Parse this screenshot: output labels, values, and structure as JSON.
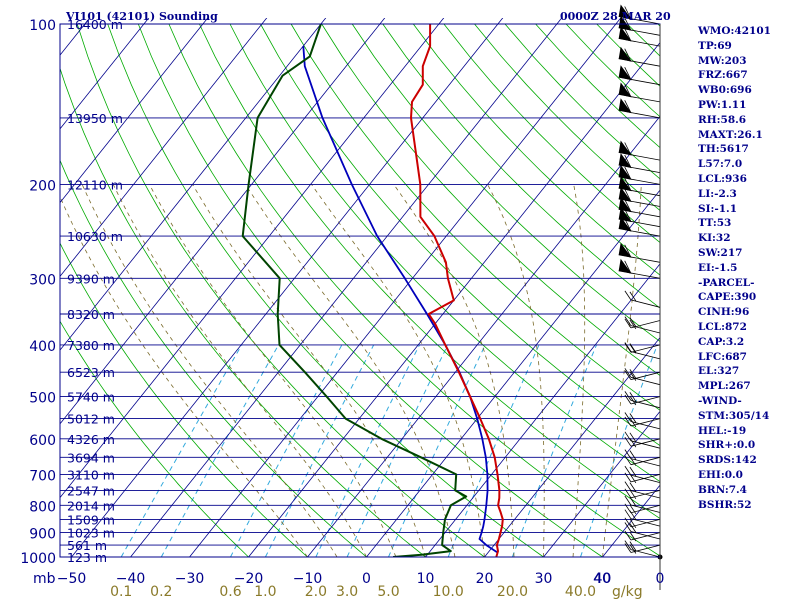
{
  "header": {
    "station": "VI101 (42101) Sounding",
    "time": "0000Z 28 MAR 20"
  },
  "indices": [
    "WMO:42101",
    "TP:69",
    "MW:203",
    "FRZ:667",
    "WB0:696",
    "PW:1.11",
    "RH:58.6",
    "MAXT:26.1",
    "TH:5617",
    "L57:7.0",
    "LCL:936",
    "LI:-2.3",
    "SI:-1.1",
    "TT:53",
    "KI:32",
    "SW:217",
    "EI:-1.5",
    "-PARCEL-",
    "CAPE:390",
    "CINH:96",
    "LCL:872",
    "CAP:3.2",
    "LFC:687",
    "EL:327",
    "MPL:267",
    "-WIND-",
    "STM:305/14",
    "HEL:-19",
    "SHR+:0.0",
    "SRDS:142",
    "EHI:0.0",
    "BRN:7.4",
    "BSHR:52"
  ],
  "chart_data": {
    "type": "line",
    "diagram": "skew-t log-p",
    "pressure_axis_unit": "mb",
    "pressure_ticks": [
      {
        "p": 100,
        "label": "100"
      },
      {
        "p": 200,
        "label": "200"
      },
      {
        "p": 300,
        "label": "300"
      },
      {
        "p": 400,
        "label": "400"
      },
      {
        "p": 500,
        "label": "500"
      },
      {
        "p": 600,
        "label": "600"
      },
      {
        "p": 700,
        "label": "700"
      },
      {
        "p": 800,
        "label": "800"
      },
      {
        "p": 900,
        "label": "900"
      },
      {
        "p": 1000,
        "label": "1000"
      }
    ],
    "height_levels": [
      {
        "p": 100,
        "label": "16400 m"
      },
      {
        "p": 150,
        "label": "13950 m"
      },
      {
        "p": 200,
        "label": "12110 m"
      },
      {
        "p": 250,
        "label": "10630 m"
      },
      {
        "p": 300,
        "label": "9390 m"
      },
      {
        "p": 350,
        "label": "8320 m"
      },
      {
        "p": 400,
        "label": "7380 m"
      },
      {
        "p": 450,
        "label": "6523 m"
      },
      {
        "p": 500,
        "label": "5740 m"
      },
      {
        "p": 550,
        "label": "5012 m"
      },
      {
        "p": 600,
        "label": "4326 m"
      },
      {
        "p": 650,
        "label": "3694 m"
      },
      {
        "p": 700,
        "label": "3110 m"
      },
      {
        "p": 750,
        "label": "2547 m"
      },
      {
        "p": 800,
        "label": "2014 m"
      },
      {
        "p": 850,
        "label": "1509 m"
      },
      {
        "p": 900,
        "label": "1023 m"
      },
      {
        "p": 950,
        "label": "561 m"
      },
      {
        "p": 1000,
        "label": "123 m"
      }
    ],
    "temp_ticks": [
      {
        "t": -50,
        "label": "−50"
      },
      {
        "t": -40,
        "label": "−40"
      },
      {
        "t": -30,
        "label": "−30"
      },
      {
        "t": -20,
        "label": "−20"
      },
      {
        "t": -10,
        "label": "−10"
      },
      {
        "t": 0,
        "label": "0"
      },
      {
        "t": 10,
        "label": "10"
      },
      {
        "t": 20,
        "label": "20"
      },
      {
        "t": 30,
        "label": "30"
      },
      {
        "t": 40,
        "label": "40"
      }
    ],
    "mixing_ratio_ticks": [
      {
        "w": 0.1,
        "label": "0.1"
      },
      {
        "w": 0.2,
        "label": "0.2"
      },
      {
        "w": 0.6,
        "label": "0.6"
      },
      {
        "w": 1.0,
        "label": "1.0"
      },
      {
        "w": 2.0,
        "label": "2.0"
      },
      {
        "w": 3.0,
        "label": "3.0"
      },
      {
        "w": 5.0,
        "label": "5.0"
      },
      {
        "w": 10.0,
        "label": "10.0"
      },
      {
        "w": 20.0,
        "label": "20.0"
      },
      {
        "w": 40.0,
        "label": "40.0"
      }
    ],
    "mixing_ratio_unit": "g/kg",
    "wind_scale_ticks": [
      {
        "v": 40,
        "label": "40"
      },
      {
        "v": 0,
        "label": "0"
      }
    ],
    "temperature": [
      [
        1000,
        22.0
      ],
      [
        975,
        21.5
      ],
      [
        950,
        20.5
      ],
      [
        925,
        20.0
      ],
      [
        900,
        19.4
      ],
      [
        875,
        18.8
      ],
      [
        850,
        18.0
      ],
      [
        825,
        16.7
      ],
      [
        800,
        15.3
      ],
      [
        775,
        14.5
      ],
      [
        750,
        13.5
      ],
      [
        700,
        11.0
      ],
      [
        650,
        8.2
      ],
      [
        600,
        4.7
      ],
      [
        550,
        0.5
      ],
      [
        500,
        -4.2
      ],
      [
        450,
        -9.4
      ],
      [
        400,
        -15.4
      ],
      [
        365,
        -20.0
      ],
      [
        350,
        -22.4
      ],
      [
        330,
        -20.0
      ],
      [
        300,
        -24.0
      ],
      [
        280,
        -26.5
      ],
      [
        250,
        -32.0
      ],
      [
        230,
        -37.0
      ],
      [
        200,
        -41.4
      ],
      [
        150,
        -52.0
      ],
      [
        140,
        -54.0
      ],
      [
        130,
        -54.5
      ],
      [
        120,
        -57.0
      ],
      [
        110,
        -58.5
      ],
      [
        100,
        -61.5
      ]
    ],
    "dewpoint": [
      [
        1000,
        4.5
      ],
      [
        990,
        9.0
      ],
      [
        975,
        13.5
      ],
      [
        950,
        11.2
      ],
      [
        900,
        9.7
      ],
      [
        850,
        8.2
      ],
      [
        800,
        7.3
      ],
      [
        770,
        8.7
      ],
      [
        750,
        6.0
      ],
      [
        700,
        4.0
      ],
      [
        650,
        -4.3
      ],
      [
        600,
        -13.5
      ],
      [
        550,
        -22.3
      ],
      [
        500,
        -28.5
      ],
      [
        450,
        -35.5
      ],
      [
        400,
        -43.5
      ],
      [
        350,
        -48.0
      ],
      [
        300,
        -52.5
      ],
      [
        250,
        -64.5
      ],
      [
        200,
        -70.5
      ],
      [
        150,
        -78.0
      ],
      [
        125,
        -79.5
      ],
      [
        115,
        -77.5
      ],
      [
        100,
        -80.0
      ]
    ],
    "parcel": [
      [
        980,
        21.5
      ],
      [
        950,
        18.7
      ],
      [
        925,
        16.7
      ],
      [
        900,
        16.2
      ],
      [
        875,
        15.6
      ],
      [
        850,
        14.9
      ],
      [
        800,
        13.3
      ],
      [
        750,
        11.5
      ],
      [
        700,
        9.3
      ],
      [
        650,
        6.7
      ],
      [
        600,
        3.6
      ],
      [
        550,
        0.0
      ],
      [
        500,
        -4.2
      ],
      [
        450,
        -9.3
      ],
      [
        400,
        -15.4
      ],
      [
        350,
        -22.7
      ],
      [
        300,
        -31.3
      ],
      [
        250,
        -41.7
      ],
      [
        200,
        -53.0
      ],
      [
        150,
        -67.0
      ],
      [
        120,
        -77.0
      ],
      [
        110,
        -80.0
      ]
    ],
    "wind_barbs": [
      {
        "p": 1000
      },
      {
        "p": 950
      },
      {
        "p": 925
      },
      {
        "p": 900
      },
      {
        "p": 875
      },
      {
        "p": 850
      },
      {
        "p": 825
      },
      {
        "p": 800
      },
      {
        "p": 775
      },
      {
        "p": 750
      },
      {
        "p": 725
      },
      {
        "p": 700
      },
      {
        "p": 675
      },
      {
        "p": 650
      },
      {
        "p": 625
      },
      {
        "p": 600
      },
      {
        "p": 575
      },
      {
        "p": 550
      },
      {
        "p": 525
      },
      {
        "p": 500
      },
      {
        "p": 475
      },
      {
        "p": 450
      },
      {
        "p": 425
      },
      {
        "p": 400
      },
      {
        "p": 380
      },
      {
        "p": 360
      },
      {
        "p": 340
      },
      {
        "p": 300
      },
      {
        "p": 280
      },
      {
        "p": 250
      },
      {
        "p": 240
      },
      {
        "p": 230
      },
      {
        "p": 220
      },
      {
        "p": 210
      },
      {
        "p": 200
      },
      {
        "p": 190
      },
      {
        "p": 180
      },
      {
        "p": 150
      },
      {
        "p": 140
      },
      {
        "p": 130
      },
      {
        "p": 120
      },
      {
        "p": 110
      },
      {
        "p": 105
      },
      {
        "p": 100
      }
    ],
    "colors": {
      "temperature": "#cc0000",
      "dewpoint": "#004400",
      "parcel": "#0000bb",
      "isobars": "#00008b",
      "isotherms": "#00008b",
      "dry_adiabats": "#00aa00",
      "moist_adiabats": "#7a6a2a",
      "mixing_ratio": "#33aadd",
      "labels": "#00008b",
      "mixing_labels": "#8a7a2a"
    }
  }
}
